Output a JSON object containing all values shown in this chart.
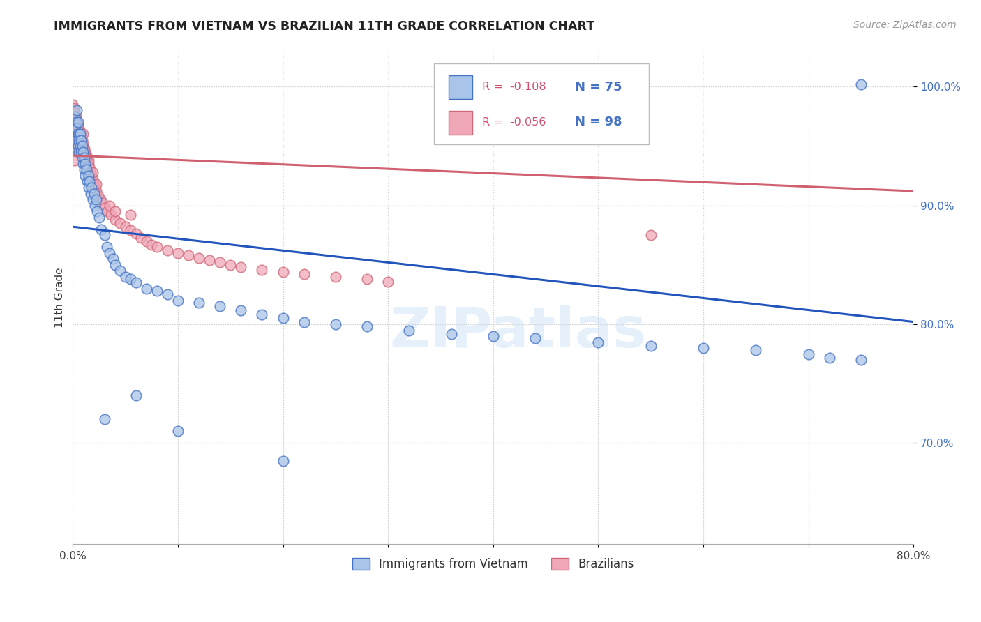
{
  "title": "IMMIGRANTS FROM VIETNAM VS BRAZILIAN 11TH GRADE CORRELATION CHART",
  "source": "Source: ZipAtlas.com",
  "ylabel": "11th Grade",
  "xlim": [
    0.0,
    0.8
  ],
  "ylim": [
    0.615,
    1.03
  ],
  "legend_r_vietnam": "-0.108",
  "legend_n_vietnam": "75",
  "legend_r_brazil": "-0.056",
  "legend_n_brazil": "98",
  "color_vietnam_fill": "#a8c4e8",
  "color_vietnam_edge": "#4472c4",
  "color_brazil_fill": "#f0a8b8",
  "color_brazil_edge": "#d06878",
  "color_vietnam_line": "#2255bb",
  "color_brazil_line": "#d06070",
  "color_r_text": "#d05070",
  "color_n_text": "#4472c4",
  "watermark": "ZIPatlas",
  "viet_line_y0": 0.882,
  "viet_line_y1": 0.802,
  "braz_line_y0": 0.942,
  "braz_line_y1": 0.912,
  "vietnam_x": [
    0.002,
    0.003,
    0.003,
    0.004,
    0.004,
    0.004,
    0.005,
    0.005,
    0.005,
    0.006,
    0.006,
    0.006,
    0.007,
    0.007,
    0.008,
    0.008,
    0.009,
    0.009,
    0.01,
    0.01,
    0.011,
    0.011,
    0.012,
    0.012,
    0.013,
    0.014,
    0.015,
    0.015,
    0.016,
    0.017,
    0.018,
    0.019,
    0.02,
    0.021,
    0.022,
    0.023,
    0.025,
    0.027,
    0.03,
    0.032,
    0.035,
    0.038,
    0.04,
    0.045,
    0.05,
    0.055,
    0.06,
    0.07,
    0.08,
    0.09,
    0.1,
    0.12,
    0.14,
    0.16,
    0.18,
    0.2,
    0.22,
    0.25,
    0.28,
    0.32,
    0.36,
    0.4,
    0.44,
    0.5,
    0.55,
    0.6,
    0.65,
    0.7,
    0.72,
    0.75,
    0.03,
    0.06,
    0.1,
    0.2,
    0.75
  ],
  "vietnam_y": [
    0.975,
    0.97,
    0.96,
    0.98,
    0.965,
    0.955,
    0.97,
    0.96,
    0.95,
    0.96,
    0.955,
    0.945,
    0.96,
    0.95,
    0.955,
    0.945,
    0.95,
    0.94,
    0.945,
    0.935,
    0.94,
    0.93,
    0.935,
    0.925,
    0.93,
    0.92,
    0.925,
    0.915,
    0.92,
    0.91,
    0.915,
    0.905,
    0.91,
    0.9,
    0.905,
    0.895,
    0.89,
    0.88,
    0.875,
    0.865,
    0.86,
    0.855,
    0.85,
    0.845,
    0.84,
    0.838,
    0.835,
    0.83,
    0.828,
    0.825,
    0.82,
    0.818,
    0.815,
    0.812,
    0.808,
    0.805,
    0.802,
    0.8,
    0.798,
    0.795,
    0.792,
    0.79,
    0.788,
    0.785,
    0.782,
    0.78,
    0.778,
    0.775,
    0.772,
    0.77,
    0.72,
    0.74,
    0.71,
    0.685,
    1.002
  ],
  "brazil_x": [
    0.0,
    0.0,
    0.0,
    0.001,
    0.001,
    0.001,
    0.001,
    0.001,
    0.002,
    0.002,
    0.002,
    0.002,
    0.003,
    0.003,
    0.003,
    0.003,
    0.004,
    0.004,
    0.004,
    0.004,
    0.005,
    0.005,
    0.005,
    0.006,
    0.006,
    0.006,
    0.007,
    0.007,
    0.007,
    0.008,
    0.008,
    0.008,
    0.009,
    0.009,
    0.01,
    0.01,
    0.011,
    0.011,
    0.012,
    0.012,
    0.013,
    0.013,
    0.014,
    0.015,
    0.016,
    0.017,
    0.018,
    0.019,
    0.02,
    0.021,
    0.022,
    0.024,
    0.026,
    0.028,
    0.03,
    0.033,
    0.036,
    0.04,
    0.045,
    0.05,
    0.055,
    0.06,
    0.065,
    0.07,
    0.075,
    0.08,
    0.09,
    0.1,
    0.11,
    0.12,
    0.13,
    0.14,
    0.15,
    0.16,
    0.18,
    0.2,
    0.22,
    0.25,
    0.28,
    0.3,
    0.01,
    0.005,
    0.002,
    0.003,
    0.008,
    0.006,
    0.012,
    0.015,
    0.004,
    0.007,
    0.019,
    0.035,
    0.04,
    0.022,
    0.013,
    0.009,
    0.055,
    0.55
  ],
  "brazil_y": [
    0.985,
    0.978,
    0.972,
    0.982,
    0.975,
    0.968,
    0.962,
    0.955,
    0.978,
    0.972,
    0.965,
    0.958,
    0.975,
    0.968,
    0.962,
    0.955,
    0.972,
    0.965,
    0.958,
    0.952,
    0.968,
    0.962,
    0.955,
    0.965,
    0.958,
    0.952,
    0.962,
    0.955,
    0.948,
    0.958,
    0.952,
    0.945,
    0.955,
    0.948,
    0.952,
    0.945,
    0.948,
    0.942,
    0.945,
    0.938,
    0.942,
    0.935,
    0.938,
    0.935,
    0.932,
    0.928,
    0.925,
    0.922,
    0.918,
    0.915,
    0.912,
    0.908,
    0.905,
    0.902,
    0.898,
    0.895,
    0.892,
    0.888,
    0.885,
    0.882,
    0.879,
    0.876,
    0.873,
    0.87,
    0.867,
    0.865,
    0.862,
    0.86,
    0.858,
    0.856,
    0.854,
    0.852,
    0.85,
    0.848,
    0.846,
    0.844,
    0.842,
    0.84,
    0.838,
    0.836,
    0.96,
    0.945,
    0.938,
    0.955,
    0.948,
    0.96,
    0.942,
    0.938,
    0.958,
    0.952,
    0.928,
    0.9,
    0.895,
    0.918,
    0.94,
    0.95,
    0.892,
    0.875
  ]
}
